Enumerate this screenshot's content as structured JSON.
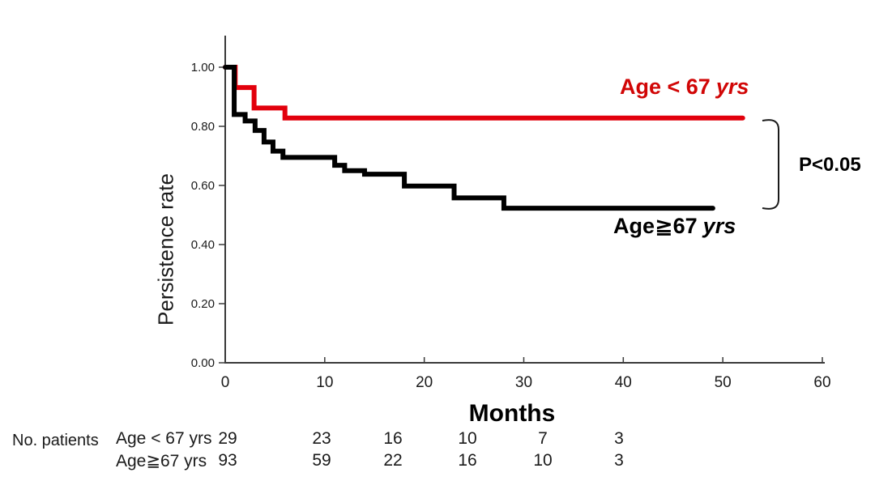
{
  "chart_data": {
    "type": "line",
    "subtype": "kaplan-meier-step",
    "title": "",
    "xlabel": "Months",
    "ylabel": "Persistence rate",
    "xlim": [
      0,
      60
    ],
    "ylim": [
      0.0,
      1.0
    ],
    "grid": false,
    "axis_color": "#3a3a3a",
    "xticks": [
      0,
      10,
      20,
      30,
      40,
      50,
      60
    ],
    "yticks": [
      {
        "v": 0.0,
        "label": "0.00"
      },
      {
        "v": 0.2,
        "label": "0.20"
      },
      {
        "v": 0.4,
        "label": "0.40"
      },
      {
        "v": 0.6,
        "label": "0.60"
      },
      {
        "v": 0.8,
        "label": "0.80"
      },
      {
        "v": 1.0,
        "label": "1.00"
      }
    ],
    "series": [
      {
        "id": "age-under-67",
        "name": "Age < 67 yrs",
        "color": "#e2000c",
        "end_month": 52,
        "steps": [
          [
            0,
            1.0
          ],
          [
            1,
            0.931
          ],
          [
            2.9,
            0.862
          ],
          [
            6,
            0.828
          ]
        ]
      },
      {
        "id": "age-67-and-over",
        "name": "Age≧67 yrs",
        "color": "#000000",
        "end_month": 49,
        "steps": [
          [
            0,
            1.0
          ],
          [
            0.9,
            0.84
          ],
          [
            2,
            0.818
          ],
          [
            3,
            0.786
          ],
          [
            3.9,
            0.747
          ],
          [
            4.8,
            0.716
          ],
          [
            5.8,
            0.695
          ],
          [
            11,
            0.668
          ],
          [
            12,
            0.65
          ],
          [
            14,
            0.638
          ],
          [
            18,
            0.598
          ],
          [
            23,
            0.558
          ],
          [
            28,
            0.523
          ]
        ]
      }
    ],
    "annotation": {
      "text": "P<0.05",
      "bracket": true
    }
  },
  "labels": {
    "red_main": "Age < 67",
    "black_main": "Age≧67",
    "unit": "yrs",
    "p_value": "P<0.05"
  },
  "risk_table": {
    "title": "No. patients",
    "rows": [
      {
        "label": "Age < 67 yrs",
        "counts": [
          "29",
          "23",
          "16",
          "10",
          "7",
          "3"
        ]
      },
      {
        "label": "Age≧67 yrs",
        "counts": [
          "93",
          "59",
          "22",
          "16",
          "10",
          "3"
        ]
      }
    ]
  }
}
